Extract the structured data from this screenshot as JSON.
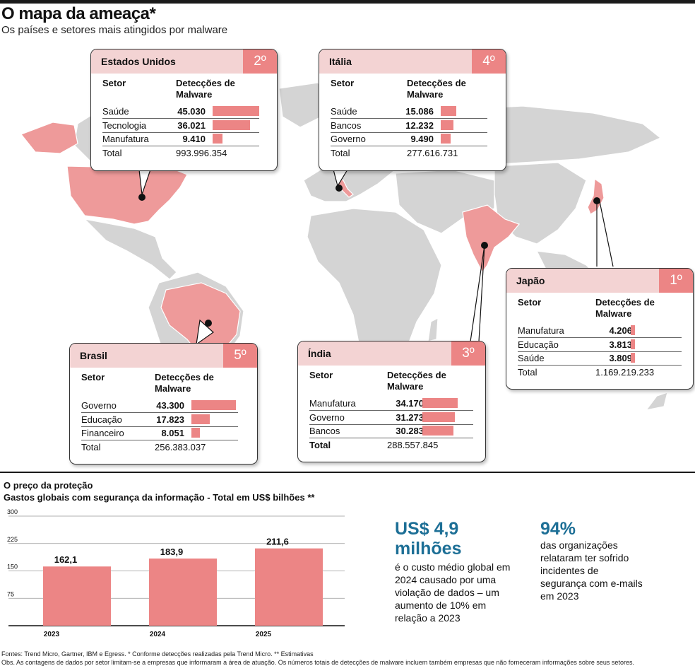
{
  "title": "O mapa da ameaça*",
  "subtitle": "Os países e setores mais atingidos por malware",
  "column_headers": {
    "sector": "Setor",
    "detections": "Detecções de Malware",
    "total": "Total"
  },
  "colors": {
    "accent": "#ec8585",
    "header_bg": "#f3d3d3",
    "map_land": "#d4d4d4",
    "map_highlight": "#ee9a9a",
    "stat_blue": "#1d6f96"
  },
  "countries": [
    {
      "name": "Estados Unidos",
      "rank": "2º",
      "rows": [
        {
          "sector": "Saúde",
          "value": "45.030",
          "v": 45030
        },
        {
          "sector": "Tecnologia",
          "value": "36.021",
          "v": 36021
        },
        {
          "sector": "Manufatura",
          "value": "9.410",
          "v": 9410
        }
      ],
      "total": "993.996.354"
    },
    {
      "name": "Itália",
      "rank": "4º",
      "rows": [
        {
          "sector": "Saúde",
          "value": "15.086",
          "v": 15086
        },
        {
          "sector": "Bancos",
          "value": "12.232",
          "v": 12232
        },
        {
          "sector": "Governo",
          "value": "9.490",
          "v": 9490
        }
      ],
      "total": "277.616.731"
    },
    {
      "name": "Japão",
      "rank": "1º",
      "rows": [
        {
          "sector": "Manufatura",
          "value": "4.206",
          "v": 4206
        },
        {
          "sector": "Educação",
          "value": "3.813",
          "v": 3813
        },
        {
          "sector": "Saúde",
          "value": "3.809",
          "v": 3809
        }
      ],
      "total": "1.169.219.233"
    },
    {
      "name": "Índia",
      "rank": "3º",
      "rows": [
        {
          "sector": "Manufatura",
          "value": "34.170",
          "v": 34170
        },
        {
          "sector": "Governo",
          "value": "31.273",
          "v": 31273
        },
        {
          "sector": "Bancos",
          "value": "30.283",
          "v": 30283
        }
      ],
      "total": "288.557.845"
    },
    {
      "name": "Brasil",
      "rank": "5º",
      "rows": [
        {
          "sector": "Governo",
          "value": "43.300",
          "v": 43300
        },
        {
          "sector": "Educação",
          "value": "17.823",
          "v": 17823
        },
        {
          "sector": "Financeiro",
          "value": "8.051",
          "v": 8051
        }
      ],
      "total": "256.383.037"
    }
  ],
  "spending": {
    "title": "O preço da proteção",
    "subtitle": "Gastos globais com segurança da informação - Total em US$ bilhões **"
  },
  "chart_data": {
    "type": "bar",
    "title": "Gastos globais com segurança da informação - Total em US$ bilhões **",
    "categories": [
      "2023",
      "2024",
      "2025"
    ],
    "values": [
      162.1,
      183.9,
      211.6
    ],
    "value_labels": [
      "162,1",
      "183,9",
      "211,6"
    ],
    "y_ticks": [
      75,
      150,
      225,
      300
    ],
    "ylim": [
      0,
      300
    ],
    "grid": true
  },
  "stats": [
    {
      "value": "US$ 4,9 milhões",
      "text": "é o custo médio global em 2024 causado por uma violação de dados – um aumento de 10% em relação a 2023"
    },
    {
      "value": "94%",
      "text": "das organizações relataram ter sofrido incidentes de segurança com e-mails em 2023"
    }
  ],
  "footnotes": {
    "sources": "Fontes: Trend Micro, Gartner, IBM e Egress. * Conforme detecções realizadas pela Trend Micro. ** Estimativas",
    "obs": "Obs. As contagens de dados por setor limitam-se a empresas que informaram a área de atuação. Os números totais de detecções de malware incluem também empresas que não forneceram informações sobre seus setores."
  }
}
